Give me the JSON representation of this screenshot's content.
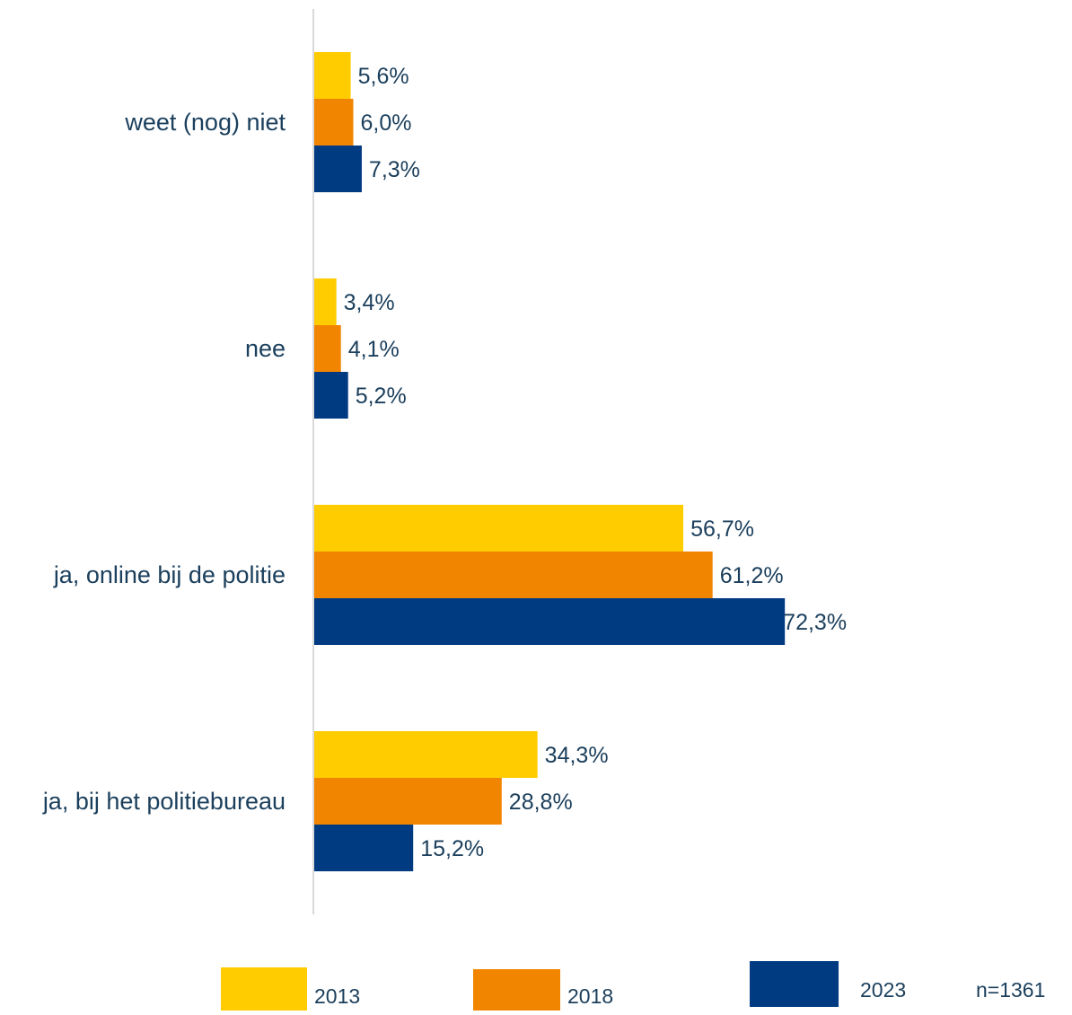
{
  "chart_data": {
    "type": "bar",
    "orientation": "horizontal",
    "categories": [
      "weet (nog) niet",
      "nee",
      "ja, online bij de politie",
      "ja, bij het politiebureau"
    ],
    "series": [
      {
        "name": "2013",
        "color": "#FFCC00",
        "values": [
          5.6,
          3.4,
          56.7,
          34.3
        ],
        "labels": [
          "5,6%",
          "3,4%",
          "56,7%",
          "34,3%"
        ]
      },
      {
        "name": "2018",
        "color": "#F28500",
        "values": [
          6.0,
          4.1,
          61.2,
          28.8
        ],
        "labels": [
          "6,0%",
          "4,1%",
          "61,2%",
          "28,8%"
        ]
      },
      {
        "name": "2023",
        "color": "#003B82",
        "values": [
          7.3,
          5.2,
          72.3,
          15.2
        ],
        "labels": [
          "7,3%",
          "5,2%",
          "72,3%",
          "15,2%"
        ]
      }
    ],
    "xlim": [
      0,
      100
    ],
    "grid": false,
    "legend_position": "bottom",
    "note": "n=1361",
    "axis_color": "#d9d9d9",
    "text_color": "#1b3f5c"
  }
}
